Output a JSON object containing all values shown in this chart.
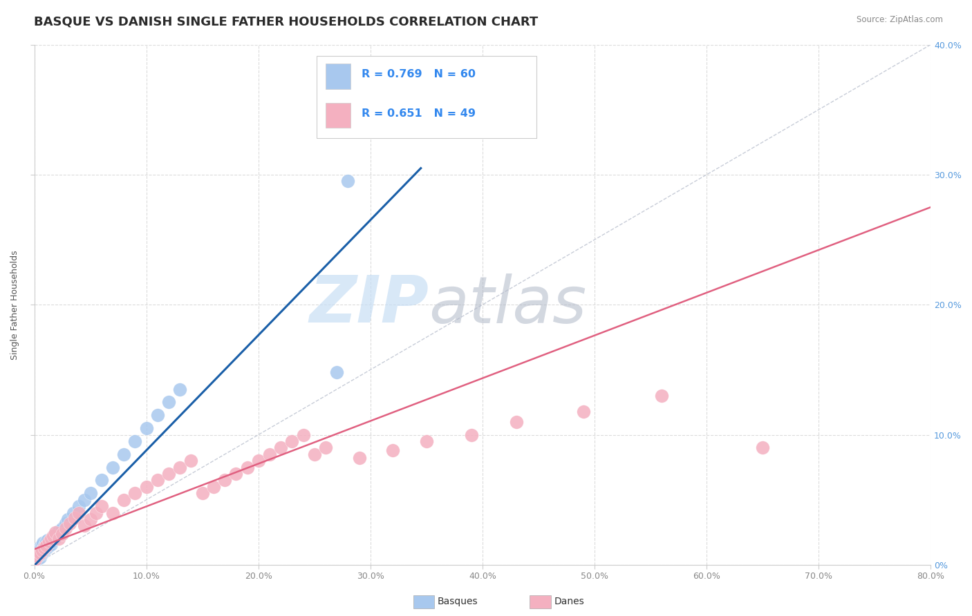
{
  "title": "BASQUE VS DANISH SINGLE FATHER HOUSEHOLDS CORRELATION CHART",
  "source": "Source: ZipAtlas.com",
  "ylabel": "Single Father Households",
  "legend_basque_R": "0.769",
  "legend_basque_N": "60",
  "legend_danes_R": "0.651",
  "legend_danes_N": "49",
  "basque_color": "#a8c8ee",
  "basque_line_color": "#1a5fa8",
  "danes_color": "#f4b0c0",
  "danes_line_color": "#e06080",
  "watermark_zip_color": "#c8dff5",
  "watermark_atlas_color": "#b0b8c8",
  "background_color": "#ffffff",
  "grid_color": "#d8d8d8",
  "xlim": [
    0.0,
    0.8
  ],
  "ylim": [
    0.0,
    0.4
  ],
  "title_fontsize": 13,
  "axis_label_fontsize": 9,
  "tick_fontsize": 9,
  "tick_color": "#888888",
  "right_tick_color": "#5599dd"
}
